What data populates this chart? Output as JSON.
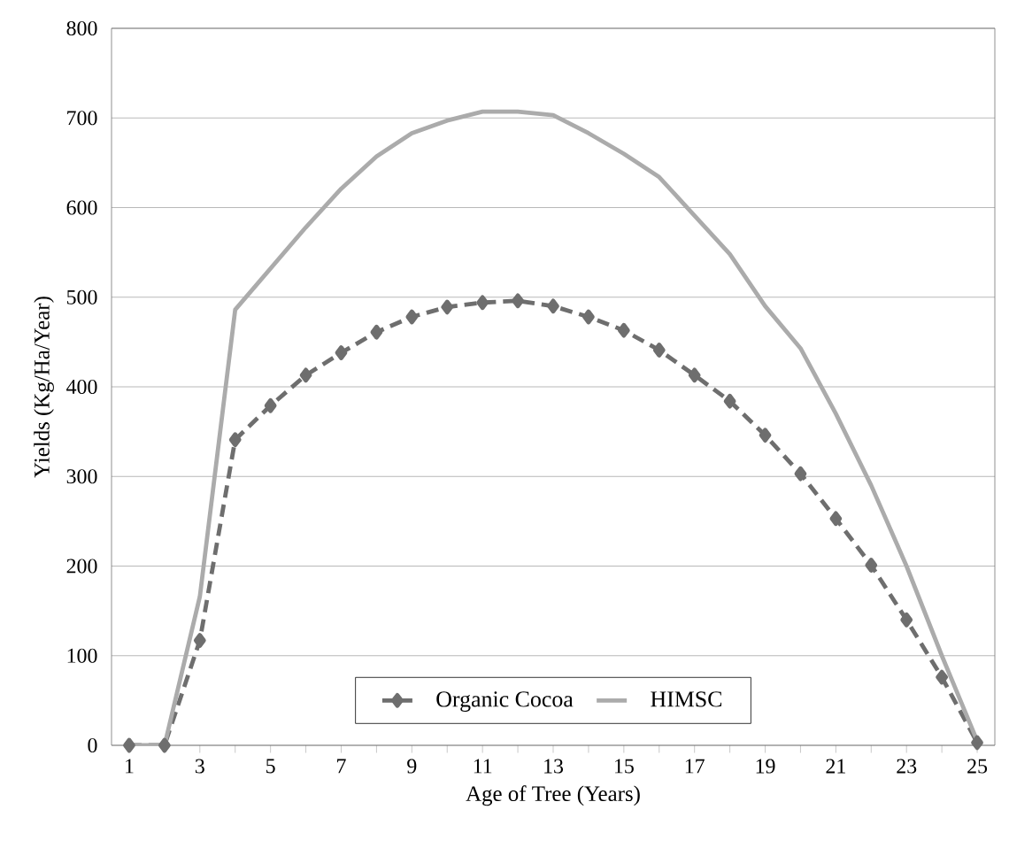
{
  "chart_data": {
    "type": "line",
    "xlabel": "Age of Tree (Years)",
    "ylabel": "Yields (Kg/Ha/Year)",
    "categories": [
      "1",
      null,
      "3",
      null,
      "5",
      null,
      "7",
      null,
      "9",
      null,
      "11",
      null,
      "13",
      null,
      "15",
      null,
      "17",
      null,
      "19",
      null,
      "21",
      null,
      "23",
      null,
      "25"
    ],
    "series": [
      {
        "name": "Organic Cocoa",
        "color": "#6e6e6e",
        "marker": "diamond",
        "line_style": "dashed",
        "values": [
          0,
          0,
          117,
          341,
          379,
          413,
          438,
          461,
          478,
          489,
          494,
          496,
          490,
          478,
          463,
          441,
          413,
          384,
          346,
          303,
          253,
          201,
          140,
          76,
          3
        ]
      },
      {
        "name": "HIMSC",
        "color": "#ababab",
        "marker": "none",
        "line_style": "solid",
        "values": [
          0,
          0,
          166,
          486,
          532,
          578,
          621,
          657,
          683,
          697,
          707,
          707,
          703,
          683,
          660,
          634,
          591,
          548,
          490,
          443,
          370,
          290,
          200,
          100,
          5
        ]
      }
    ],
    "ylim": [
      0,
      800
    ],
    "yticks": [
      0,
      100,
      200,
      300,
      400,
      500,
      600,
      700,
      800
    ],
    "grid": "y",
    "legend": "bottom"
  }
}
